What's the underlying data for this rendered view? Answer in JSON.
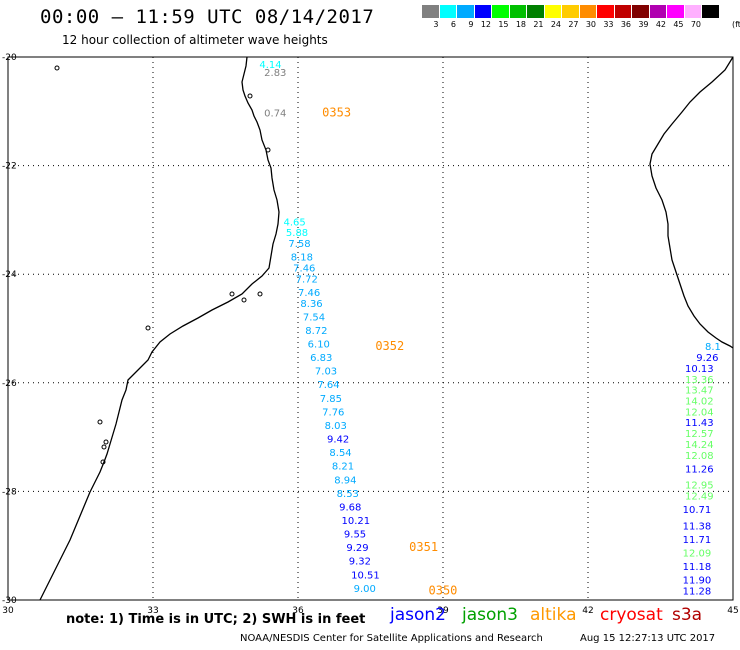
{
  "header": {
    "title": "00:00 – 11:59 UTC 08/14/2017",
    "subtitle": "12 hour collection of altimeter wave heights"
  },
  "colorbar": {
    "unit": "(ft)",
    "swatches": [
      {
        "color": "#808080",
        "label": "3"
      },
      {
        "color": "#00ffff",
        "label": "6"
      },
      {
        "color": "#00aaff",
        "label": "9"
      },
      {
        "color": "#0000ff",
        "label": "12"
      },
      {
        "color": "#00ff00",
        "label": "15"
      },
      {
        "color": "#00c000",
        "label": "18"
      },
      {
        "color": "#008000",
        "label": "21"
      },
      {
        "color": "#ffff00",
        "label": "24"
      },
      {
        "color": "#ffcc00",
        "label": "27"
      },
      {
        "color": "#ff8c00",
        "label": "30"
      },
      {
        "color": "#ff0000",
        "label": "33"
      },
      {
        "color": "#c00000",
        "label": "36"
      },
      {
        "color": "#800000",
        "label": "39"
      },
      {
        "color": "#b000b0",
        "label": "42"
      },
      {
        "color": "#ff00ff",
        "label": "45"
      },
      {
        "color": "#ffb0ff",
        "label": "70"
      },
      {
        "color": "#000000",
        "label": ""
      }
    ]
  },
  "map": {
    "lat_labels": [
      "-20",
      "-22",
      "-24",
      "-26",
      "-28",
      "-30"
    ],
    "lon_labels": [
      "30",
      "33",
      "36",
      "39",
      "42",
      "45"
    ],
    "lat_range": [
      -30,
      -20
    ],
    "lon_range": [
      30,
      45
    ],
    "track_times": [
      {
        "label": "0353",
        "color": "#ff8c00",
        "lon": 36.5,
        "lat": -21.1
      },
      {
        "label": "0352",
        "color": "#ff8c00",
        "lon": 37.6,
        "lat": -25.4
      },
      {
        "label": "0351",
        "color": "#ff8c00",
        "lon": 38.3,
        "lat": -29.1
      },
      {
        "label": "0350",
        "color": "#ff8c00",
        "lon": 38.7,
        "lat": -29.9
      }
    ],
    "wave_track_west": [
      {
        "v": "4.14",
        "color": "#00ffff",
        "lon": 35.2,
        "lat": -20.2
      },
      {
        "v": "2.83",
        "color": "#808080",
        "lon": 35.3,
        "lat": -20.35
      },
      {
        "v": "0.74",
        "color": "#808080",
        "lon": 35.3,
        "lat": -21.1
      },
      {
        "v": "4.65",
        "color": "#00ffff",
        "lon": 35.7,
        "lat": -23.1
      },
      {
        "v": "5.88",
        "color": "#00ffff",
        "lon": 35.75,
        "lat": -23.3
      },
      {
        "v": "7.58",
        "color": "#00aaff",
        "lon": 35.8,
        "lat": -23.5
      },
      {
        "v": "8.18",
        "color": "#00aaff",
        "lon": 35.85,
        "lat": -23.75
      },
      {
        "v": "7.46",
        "color": "#00aaff",
        "lon": 35.9,
        "lat": -23.95
      },
      {
        "v": "7.72",
        "color": "#00aaff",
        "lon": 35.95,
        "lat": -24.15
      },
      {
        "v": "7.46",
        "color": "#00aaff",
        "lon": 36.0,
        "lat": -24.4
      },
      {
        "v": "8.36",
        "color": "#00aaff",
        "lon": 36.05,
        "lat": -24.6
      },
      {
        "v": "7.54",
        "color": "#00aaff",
        "lon": 36.1,
        "lat": -24.85
      },
      {
        "v": "8.72",
        "color": "#00aaff",
        "lon": 36.15,
        "lat": -25.1
      },
      {
        "v": "6.10",
        "color": "#00aaff",
        "lon": 36.2,
        "lat": -25.35
      },
      {
        "v": "6.83",
        "color": "#00aaff",
        "lon": 36.25,
        "lat": -25.6
      },
      {
        "v": "7.03",
        "color": "#00aaff",
        "lon": 36.35,
        "lat": -25.85
      },
      {
        "v": "7.64",
        "color": "#00aaff",
        "lon": 36.4,
        "lat": -26.1
      },
      {
        "v": "7.85",
        "color": "#00aaff",
        "lon": 36.45,
        "lat": -26.35
      },
      {
        "v": "7.76",
        "color": "#00aaff",
        "lon": 36.5,
        "lat": -26.6
      },
      {
        "v": "8.03",
        "color": "#00aaff",
        "lon": 36.55,
        "lat": -26.85
      },
      {
        "v": "9.42",
        "color": "#0000ff",
        "lon": 36.6,
        "lat": -27.1
      },
      {
        "v": "8.54",
        "color": "#00aaff",
        "lon": 36.65,
        "lat": -27.35
      },
      {
        "v": "8.21",
        "color": "#00aaff",
        "lon": 36.7,
        "lat": -27.6
      },
      {
        "v": "8.94",
        "color": "#00aaff",
        "lon": 36.75,
        "lat": -27.85
      },
      {
        "v": "8.53",
        "color": "#00aaff",
        "lon": 36.8,
        "lat": -28.1
      },
      {
        "v": "9.68",
        "color": "#0000ff",
        "lon": 36.85,
        "lat": -28.35
      },
      {
        "v": "10.21",
        "color": "#0000ff",
        "lon": 36.9,
        "lat": -28.6
      },
      {
        "v": "9.55",
        "color": "#0000ff",
        "lon": 36.95,
        "lat": -28.85
      },
      {
        "v": "9.29",
        "color": "#0000ff",
        "lon": 37.0,
        "lat": -29.1
      },
      {
        "v": "9.32",
        "color": "#0000ff",
        "lon": 37.05,
        "lat": -29.35
      },
      {
        "v": "10.51",
        "color": "#0000ff",
        "lon": 37.1,
        "lat": -29.6
      },
      {
        "v": "9.00",
        "color": "#00aaff",
        "lon": 37.15,
        "lat": -29.85
      }
    ],
    "wave_track_east": [
      {
        "v": "8.1",
        "color": "#00aaff",
        "lon": 44.75,
        "lat": -25.4
      },
      {
        "v": "9.26",
        "color": "#0000ff",
        "lon": 44.7,
        "lat": -25.6
      },
      {
        "v": "10.13",
        "color": "#0000ff",
        "lon": 44.6,
        "lat": -25.8
      },
      {
        "v": "13.36",
        "color": "#66ff66",
        "lon": 44.6,
        "lat": -26.0
      },
      {
        "v": "13.47",
        "color": "#66ff66",
        "lon": 44.6,
        "lat": -26.2
      },
      {
        "v": "14.02",
        "color": "#66ff66",
        "lon": 44.6,
        "lat": -26.4
      },
      {
        "v": "12.04",
        "color": "#66ff66",
        "lon": 44.6,
        "lat": -26.6
      },
      {
        "v": "11.43",
        "color": "#0000ff",
        "lon": 44.6,
        "lat": -26.8
      },
      {
        "v": "12.57",
        "color": "#66ff66",
        "lon": 44.6,
        "lat": -27.0
      },
      {
        "v": "14.24",
        "color": "#66ff66",
        "lon": 44.6,
        "lat": -27.2
      },
      {
        "v": "12.08",
        "color": "#66ff66",
        "lon": 44.6,
        "lat": -27.4
      },
      {
        "v": "11.26",
        "color": "#0000ff",
        "lon": 44.6,
        "lat": -27.65
      },
      {
        "v": "12.95",
        "color": "#66ff66",
        "lon": 44.6,
        "lat": -27.95
      },
      {
        "v": "12.49",
        "color": "#66ff66",
        "lon": 44.6,
        "lat": -28.15
      },
      {
        "v": "10.71",
        "color": "#0000ff",
        "lon": 44.55,
        "lat": -28.4
      },
      {
        "v": "11.38",
        "color": "#0000ff",
        "lon": 44.55,
        "lat": -28.7
      },
      {
        "v": "11.71",
        "color": "#0000ff",
        "lon": 44.55,
        "lat": -28.95
      },
      {
        "v": "12.09",
        "color": "#66ff66",
        "lon": 44.55,
        "lat": -29.2
      },
      {
        "v": "11.18",
        "color": "#0000ff",
        "lon": 44.55,
        "lat": -29.45
      },
      {
        "v": "11.90",
        "color": "#0000ff",
        "lon": 44.55,
        "lat": -29.7
      },
      {
        "v": "11.28",
        "color": "#0000ff",
        "lon": 44.55,
        "lat": -29.9
      }
    ]
  },
  "note": "note: 1) Time is in UTC; 2) SWH is in feet",
  "satellites": [
    {
      "name": "jason2",
      "color": "#0000ff"
    },
    {
      "name": "jason3",
      "color": "#00a000"
    },
    {
      "name": "altika",
      "color": "#ff9900"
    },
    {
      "name": "cryosat",
      "color": "#ff0000"
    },
    {
      "name": "s3a",
      "color": "#b00000"
    }
  ],
  "footer": {
    "credit": "NOAA/NESDIS Center for Satellite Applications and Research",
    "generated": "Aug 15 12:27:13 UTC 2017"
  }
}
